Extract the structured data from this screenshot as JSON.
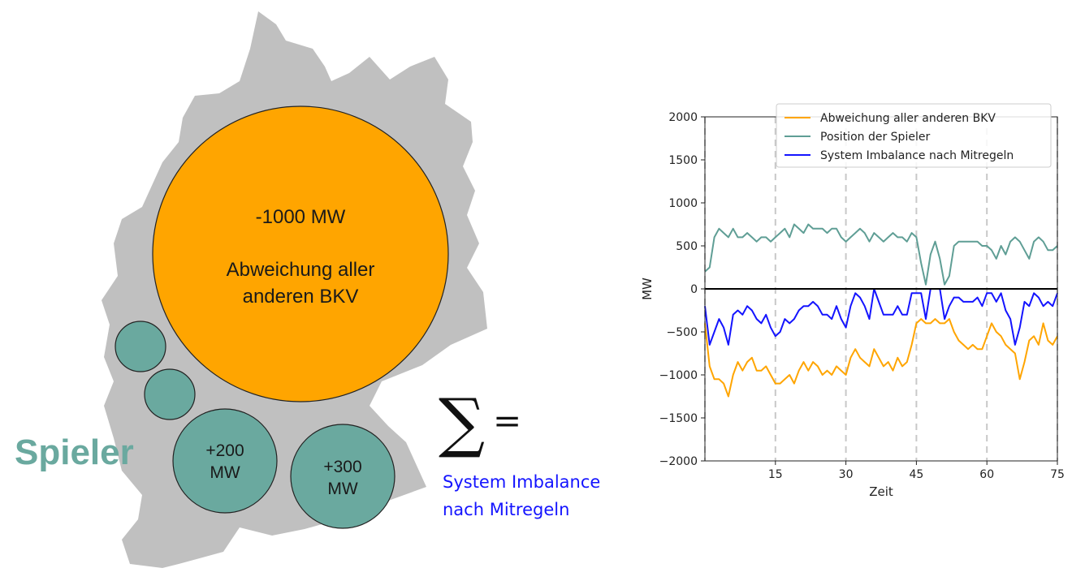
{
  "diagram": {
    "big_circle": {
      "line1": "-1000 MW",
      "line2": "Abweichung aller",
      "line3": "anderen BKV"
    },
    "players_label": "Spieler",
    "circle_200": {
      "line1": "+200",
      "line2": "MW"
    },
    "circle_300": {
      "line1": "+300",
      "line2": "MW"
    },
    "sum_symbol": "∑",
    "equals_symbol": "=",
    "result_line1": "System Imbalance",
    "result_line2": "nach Mitregeln",
    "colors": {
      "orange": "#ffa500",
      "teal": "#6aa99f",
      "blue": "#1414ff",
      "map": "#c0c0c0"
    }
  },
  "chart_data": {
    "type": "line",
    "xlabel": "Zeit",
    "ylabel": "MW",
    "xlim": [
      0,
      75
    ],
    "ylim": [
      -2000,
      2000
    ],
    "xticks": [
      15,
      30,
      45,
      60,
      75
    ],
    "yticks": [
      2000,
      1500,
      1000,
      500,
      0,
      -500,
      -1000,
      -1500,
      -2000
    ],
    "vlines": [
      0,
      15,
      30,
      45,
      60,
      75
    ],
    "hline": 0,
    "legend_position": "top-right",
    "series": [
      {
        "name": "Abweichung aller anderen BKV",
        "color": "#ffa500",
        "x": [
          0,
          1,
          2,
          3,
          4,
          5,
          6,
          7,
          8,
          9,
          10,
          11,
          12,
          13,
          14,
          15,
          16,
          17,
          18,
          19,
          20,
          21,
          22,
          23,
          24,
          25,
          26,
          27,
          28,
          29,
          30,
          31,
          32,
          33,
          34,
          35,
          36,
          37,
          38,
          39,
          40,
          41,
          42,
          43,
          44,
          45,
          46,
          47,
          48,
          49,
          50,
          51,
          52,
          53,
          54,
          55,
          56,
          57,
          58,
          59,
          60,
          61,
          62,
          63,
          64,
          65,
          66,
          67,
          68,
          69,
          70,
          71,
          72,
          73,
          74,
          75
        ],
        "values": [
          -400,
          -900,
          -1050,
          -1050,
          -1100,
          -1250,
          -1000,
          -850,
          -950,
          -850,
          -800,
          -950,
          -950,
          -900,
          -1000,
          -1100,
          -1100,
          -1050,
          -1000,
          -1100,
          -950,
          -850,
          -950,
          -850,
          -900,
          -1000,
          -950,
          -1000,
          -900,
          -950,
          -1000,
          -800,
          -700,
          -800,
          -850,
          -900,
          -700,
          -800,
          -900,
          -850,
          -950,
          -800,
          -900,
          -850,
          -650,
          -400,
          -350,
          -400,
          -400,
          -350,
          -400,
          -400,
          -350,
          -500,
          -600,
          -650,
          -700,
          -650,
          -700,
          -700,
          -550,
          -400,
          -500,
          -550,
          -650,
          -700,
          -750,
          -1050,
          -850,
          -600,
          -550,
          -650,
          -400,
          -600,
          -650,
          -550
        ]
      },
      {
        "name": "Position der Spieler",
        "color": "#5f9e95",
        "x": [
          0,
          1,
          2,
          3,
          4,
          5,
          6,
          7,
          8,
          9,
          10,
          11,
          12,
          13,
          14,
          15,
          16,
          17,
          18,
          19,
          20,
          21,
          22,
          23,
          24,
          25,
          26,
          27,
          28,
          29,
          30,
          31,
          32,
          33,
          34,
          35,
          36,
          37,
          38,
          39,
          40,
          41,
          42,
          43,
          44,
          45,
          46,
          47,
          48,
          49,
          50,
          51,
          52,
          53,
          54,
          55,
          56,
          57,
          58,
          59,
          60,
          61,
          62,
          63,
          64,
          65,
          66,
          67,
          68,
          69,
          70,
          71,
          72,
          73,
          74,
          75
        ],
        "values": [
          200,
          250,
          600,
          700,
          650,
          600,
          700,
          600,
          600,
          650,
          600,
          550,
          600,
          600,
          550,
          600,
          650,
          700,
          600,
          750,
          700,
          650,
          750,
          700,
          700,
          700,
          650,
          700,
          700,
          600,
          550,
          600,
          650,
          700,
          650,
          550,
          650,
          600,
          550,
          600,
          650,
          600,
          600,
          550,
          650,
          600,
          300,
          50,
          400,
          550,
          350,
          50,
          150,
          500,
          550,
          550,
          550,
          550,
          550,
          500,
          500,
          450,
          350,
          500,
          400,
          550,
          600,
          550,
          450,
          350,
          550,
          600,
          550,
          450,
          450,
          500
        ]
      },
      {
        "name": "System Imbalance nach Mitregeln",
        "color": "#1414ff",
        "x": [
          0,
          1,
          2,
          3,
          4,
          5,
          6,
          7,
          8,
          9,
          10,
          11,
          12,
          13,
          14,
          15,
          16,
          17,
          18,
          19,
          20,
          21,
          22,
          23,
          24,
          25,
          26,
          27,
          28,
          29,
          30,
          31,
          32,
          33,
          34,
          35,
          36,
          37,
          38,
          39,
          40,
          41,
          42,
          43,
          44,
          45,
          46,
          47,
          48,
          49,
          50,
          51,
          52,
          53,
          54,
          55,
          56,
          57,
          58,
          59,
          60,
          61,
          62,
          63,
          64,
          65,
          66,
          67,
          68,
          69,
          70,
          71,
          72,
          73,
          74,
          75
        ],
        "values": [
          -200,
          -650,
          -500,
          -350,
          -450,
          -650,
          -300,
          -250,
          -300,
          -200,
          -250,
          -350,
          -400,
          -300,
          -450,
          -550,
          -500,
          -350,
          -400,
          -350,
          -250,
          -200,
          -200,
          -150,
          -200,
          -300,
          -300,
          -350,
          -200,
          -350,
          -450,
          -200,
          -50,
          -100,
          -200,
          -350,
          0,
          -150,
          -300,
          -300,
          -300,
          -200,
          -300,
          -300,
          -50,
          -50,
          -50,
          -350,
          0,
          0,
          0,
          -350,
          -200,
          -100,
          -100,
          -150,
          -150,
          -150,
          -100,
          -200,
          -50,
          -50,
          -150,
          -50,
          -250,
          -350,
          -650,
          -450,
          -150,
          -200,
          -50,
          -100,
          -200,
          -150,
          -200,
          -50
        ]
      }
    ]
  }
}
